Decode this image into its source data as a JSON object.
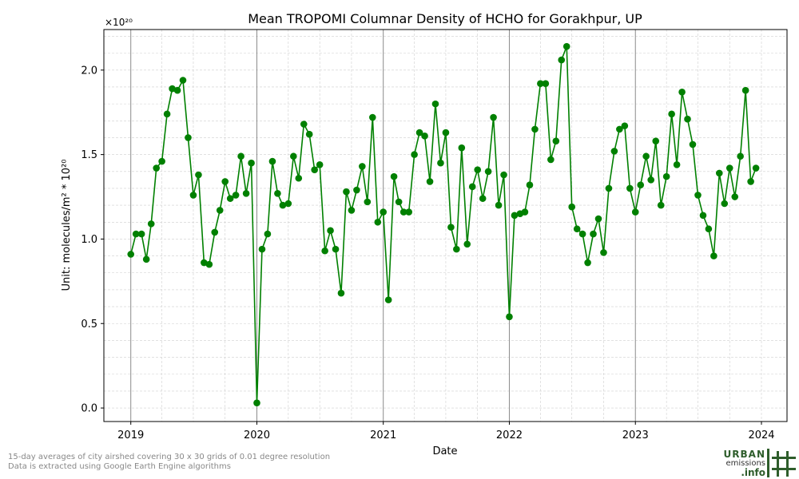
{
  "chart_data": {
    "type": "line",
    "title": "Mean TROPOMI Columnar Density of HCHO for Gorakhpur, UP",
    "xlabel": "Date",
    "ylabel": "Unit: molecules/m² * 10²⁰",
    "scale_label": "×10²⁰",
    "x_ticks": [
      "2019",
      "2020",
      "2021",
      "2022",
      "2023",
      "2024"
    ],
    "y_ticks": [
      "0.0",
      "0.5",
      "1.0",
      "1.5",
      "2.0"
    ],
    "ylim": [
      -0.08,
      2.24
    ],
    "xlim": [
      "2018-10-15",
      "2024-03-15"
    ],
    "grid": true,
    "series": [
      {
        "color": "#008000",
        "marker": "circle",
        "points": [
          [
            "2019-01-01",
            0.91
          ],
          [
            "2019-01-16",
            1.03
          ],
          [
            "2019-02-01",
            1.03
          ],
          [
            "2019-02-15",
            0.88
          ],
          [
            "2019-03-01",
            1.09
          ],
          [
            "2019-03-16",
            1.42
          ],
          [
            "2019-04-01",
            1.46
          ],
          [
            "2019-04-16",
            1.74
          ],
          [
            "2019-05-01",
            1.89
          ],
          [
            "2019-05-16",
            1.88
          ],
          [
            "2019-06-01",
            1.94
          ],
          [
            "2019-06-16",
            1.6
          ],
          [
            "2019-07-01",
            1.26
          ],
          [
            "2019-07-16",
            1.38
          ],
          [
            "2019-08-01",
            0.86
          ],
          [
            "2019-08-16",
            0.85
          ],
          [
            "2019-09-01",
            1.04
          ],
          [
            "2019-09-16",
            1.17
          ],
          [
            "2019-10-01",
            1.34
          ],
          [
            "2019-10-16",
            1.24
          ],
          [
            "2019-11-01",
            1.26
          ],
          [
            "2019-11-16",
            1.49
          ],
          [
            "2019-12-01",
            1.27
          ],
          [
            "2019-12-16",
            1.45
          ],
          [
            "2020-01-01",
            0.03
          ],
          [
            "2020-01-16",
            0.94
          ],
          [
            "2020-02-01",
            1.03
          ],
          [
            "2020-02-15",
            1.46
          ],
          [
            "2020-03-01",
            1.27
          ],
          [
            "2020-03-16",
            1.2
          ],
          [
            "2020-04-01",
            1.21
          ],
          [
            "2020-04-16",
            1.49
          ],
          [
            "2020-05-01",
            1.36
          ],
          [
            "2020-05-16",
            1.68
          ],
          [
            "2020-06-01",
            1.62
          ],
          [
            "2020-06-16",
            1.41
          ],
          [
            "2020-07-01",
            1.44
          ],
          [
            "2020-07-16",
            0.93
          ],
          [
            "2020-08-01",
            1.05
          ],
          [
            "2020-08-16",
            0.94
          ],
          [
            "2020-09-01",
            0.68
          ],
          [
            "2020-09-16",
            1.28
          ],
          [
            "2020-10-01",
            1.17
          ],
          [
            "2020-10-16",
            1.29
          ],
          [
            "2020-11-01",
            1.43
          ],
          [
            "2020-11-16",
            1.22
          ],
          [
            "2020-12-01",
            1.72
          ],
          [
            "2020-12-16",
            1.1
          ],
          [
            "2021-01-01",
            1.16
          ],
          [
            "2021-01-16",
            0.64
          ],
          [
            "2021-02-01",
            1.37
          ],
          [
            "2021-02-15",
            1.22
          ],
          [
            "2021-03-01",
            1.16
          ],
          [
            "2021-03-16",
            1.16
          ],
          [
            "2021-04-01",
            1.5
          ],
          [
            "2021-04-16",
            1.63
          ],
          [
            "2021-05-01",
            1.61
          ],
          [
            "2021-05-16",
            1.34
          ],
          [
            "2021-06-01",
            1.8
          ],
          [
            "2021-06-16",
            1.45
          ],
          [
            "2021-07-01",
            1.63
          ],
          [
            "2021-07-16",
            1.07
          ],
          [
            "2021-08-01",
            0.94
          ],
          [
            "2021-08-16",
            1.54
          ],
          [
            "2021-09-01",
            0.97
          ],
          [
            "2021-09-16",
            1.31
          ],
          [
            "2021-10-01",
            1.41
          ],
          [
            "2021-10-16",
            1.24
          ],
          [
            "2021-11-01",
            1.4
          ],
          [
            "2021-11-16",
            1.72
          ],
          [
            "2021-12-01",
            1.2
          ],
          [
            "2021-12-16",
            1.38
          ],
          [
            "2022-01-01",
            0.54
          ],
          [
            "2022-01-16",
            1.14
          ],
          [
            "2022-02-01",
            1.15
          ],
          [
            "2022-02-15",
            1.16
          ],
          [
            "2022-03-01",
            1.32
          ],
          [
            "2022-03-16",
            1.65
          ],
          [
            "2022-04-01",
            1.92
          ],
          [
            "2022-04-16",
            1.92
          ],
          [
            "2022-05-01",
            1.47
          ],
          [
            "2022-05-16",
            1.58
          ],
          [
            "2022-06-01",
            2.06
          ],
          [
            "2022-06-16",
            2.14
          ],
          [
            "2022-07-01",
            1.19
          ],
          [
            "2022-07-16",
            1.06
          ],
          [
            "2022-08-01",
            1.03
          ],
          [
            "2022-08-16",
            0.86
          ],
          [
            "2022-09-01",
            1.03
          ],
          [
            "2022-09-16",
            1.12
          ],
          [
            "2022-10-01",
            0.92
          ],
          [
            "2022-10-16",
            1.3
          ],
          [
            "2022-11-01",
            1.52
          ],
          [
            "2022-11-16",
            1.65
          ],
          [
            "2022-12-01",
            1.67
          ],
          [
            "2022-12-16",
            1.3
          ],
          [
            "2023-01-01",
            1.16
          ],
          [
            "2023-01-16",
            1.32
          ],
          [
            "2023-02-01",
            1.49
          ],
          [
            "2023-02-15",
            1.35
          ],
          [
            "2023-03-01",
            1.58
          ],
          [
            "2023-03-16",
            1.2
          ],
          [
            "2023-04-01",
            1.37
          ],
          [
            "2023-04-16",
            1.74
          ],
          [
            "2023-05-01",
            1.44
          ],
          [
            "2023-05-16",
            1.87
          ],
          [
            "2023-06-01",
            1.71
          ],
          [
            "2023-06-16",
            1.56
          ],
          [
            "2023-07-01",
            1.26
          ],
          [
            "2023-07-16",
            1.14
          ],
          [
            "2023-08-01",
            1.06
          ],
          [
            "2023-08-16",
            0.9
          ],
          [
            "2023-09-01",
            1.39
          ],
          [
            "2023-09-16",
            1.21
          ],
          [
            "2023-10-01",
            1.42
          ],
          [
            "2023-10-16",
            1.25
          ],
          [
            "2023-11-01",
            1.49
          ],
          [
            "2023-11-16",
            1.88
          ],
          [
            "2023-12-01",
            1.34
          ],
          [
            "2023-12-16",
            1.42
          ]
        ]
      }
    ]
  },
  "footnote": {
    "line1": "15-day averages of city airshed covering 30 x 30 grids of 0.01 degree resolution",
    "line2": "Data is extracted using Google Earth Engine algorithms"
  },
  "logo": {
    "word1": "URBAN",
    "word2": "emissions",
    "word3": ".info",
    "color": "#2e5d2b"
  }
}
